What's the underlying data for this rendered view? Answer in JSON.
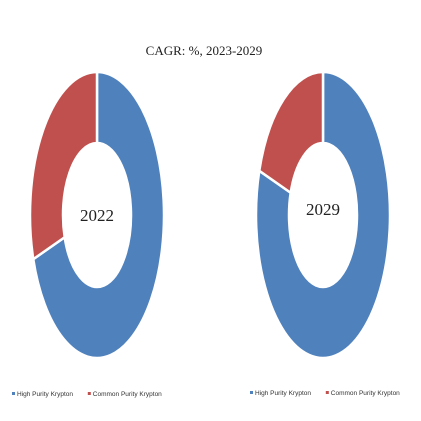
{
  "chart_title": "CAGR:  %, 2023-2029",
  "chart_data": [
    {
      "type": "pie",
      "donut": true,
      "center_label": "2022",
      "categories": [
        "High Purity Krypton",
        "Common Purity Krypton"
      ],
      "values": [
        70,
        30
      ],
      "colors": [
        "#4f81bd",
        "#c0504d"
      ],
      "legend": [
        "High Purity Krypton",
        "Common Purity Krypton"
      ],
      "legend_position": "bottom"
    },
    {
      "type": "pie",
      "donut": true,
      "center_label": "2029",
      "categories": [
        "High Purity Krypton",
        "Common Purity Krypton"
      ],
      "values": [
        80,
        20
      ],
      "colors": [
        "#4f81bd",
        "#c0504d"
      ],
      "legend": [
        "High Purity Krypton",
        "Common Purity Krypton"
      ],
      "legend_position": "bottom"
    }
  ]
}
